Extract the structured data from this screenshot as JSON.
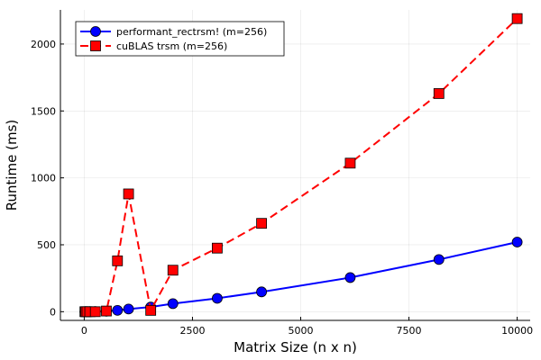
{
  "chart_data": {
    "type": "line",
    "xlabel": "Matrix Size (n x n)",
    "ylabel": "Runtime (ms)",
    "xlim": [
      -550,
      10300
    ],
    "ylim": [
      -65,
      2255
    ],
    "xticks": [
      0,
      2500,
      5000,
      7500,
      10000
    ],
    "yticks": [
      0,
      500,
      1000,
      1500,
      2000
    ],
    "grid": true,
    "legend_position": "top-left",
    "series": [
      {
        "name": "performant_rectrsm! (m=256)",
        "color": "#0000ff",
        "line_style": "solid",
        "marker": "circle",
        "x": [
          16,
          32,
          64,
          128,
          256,
          512,
          768,
          1024,
          1536,
          2048,
          3072,
          4096,
          6144,
          8192,
          10000
        ],
        "y": [
          0,
          0,
          0,
          0,
          1,
          3,
          10,
          20,
          35,
          60,
          100,
          148,
          255,
          390,
          520
        ]
      },
      {
        "name": "cuBLAS trsm (m=256)",
        "color": "#ff0000",
        "line_style": "dashed",
        "marker": "square",
        "x": [
          16,
          32,
          64,
          128,
          256,
          512,
          768,
          1024,
          1536,
          2048,
          3072,
          4096,
          6144,
          8192,
          10000
        ],
        "y": [
          0,
          0,
          0,
          0,
          0,
          5,
          380,
          880,
          10,
          310,
          475,
          660,
          1110,
          1630,
          2190
        ]
      }
    ]
  }
}
